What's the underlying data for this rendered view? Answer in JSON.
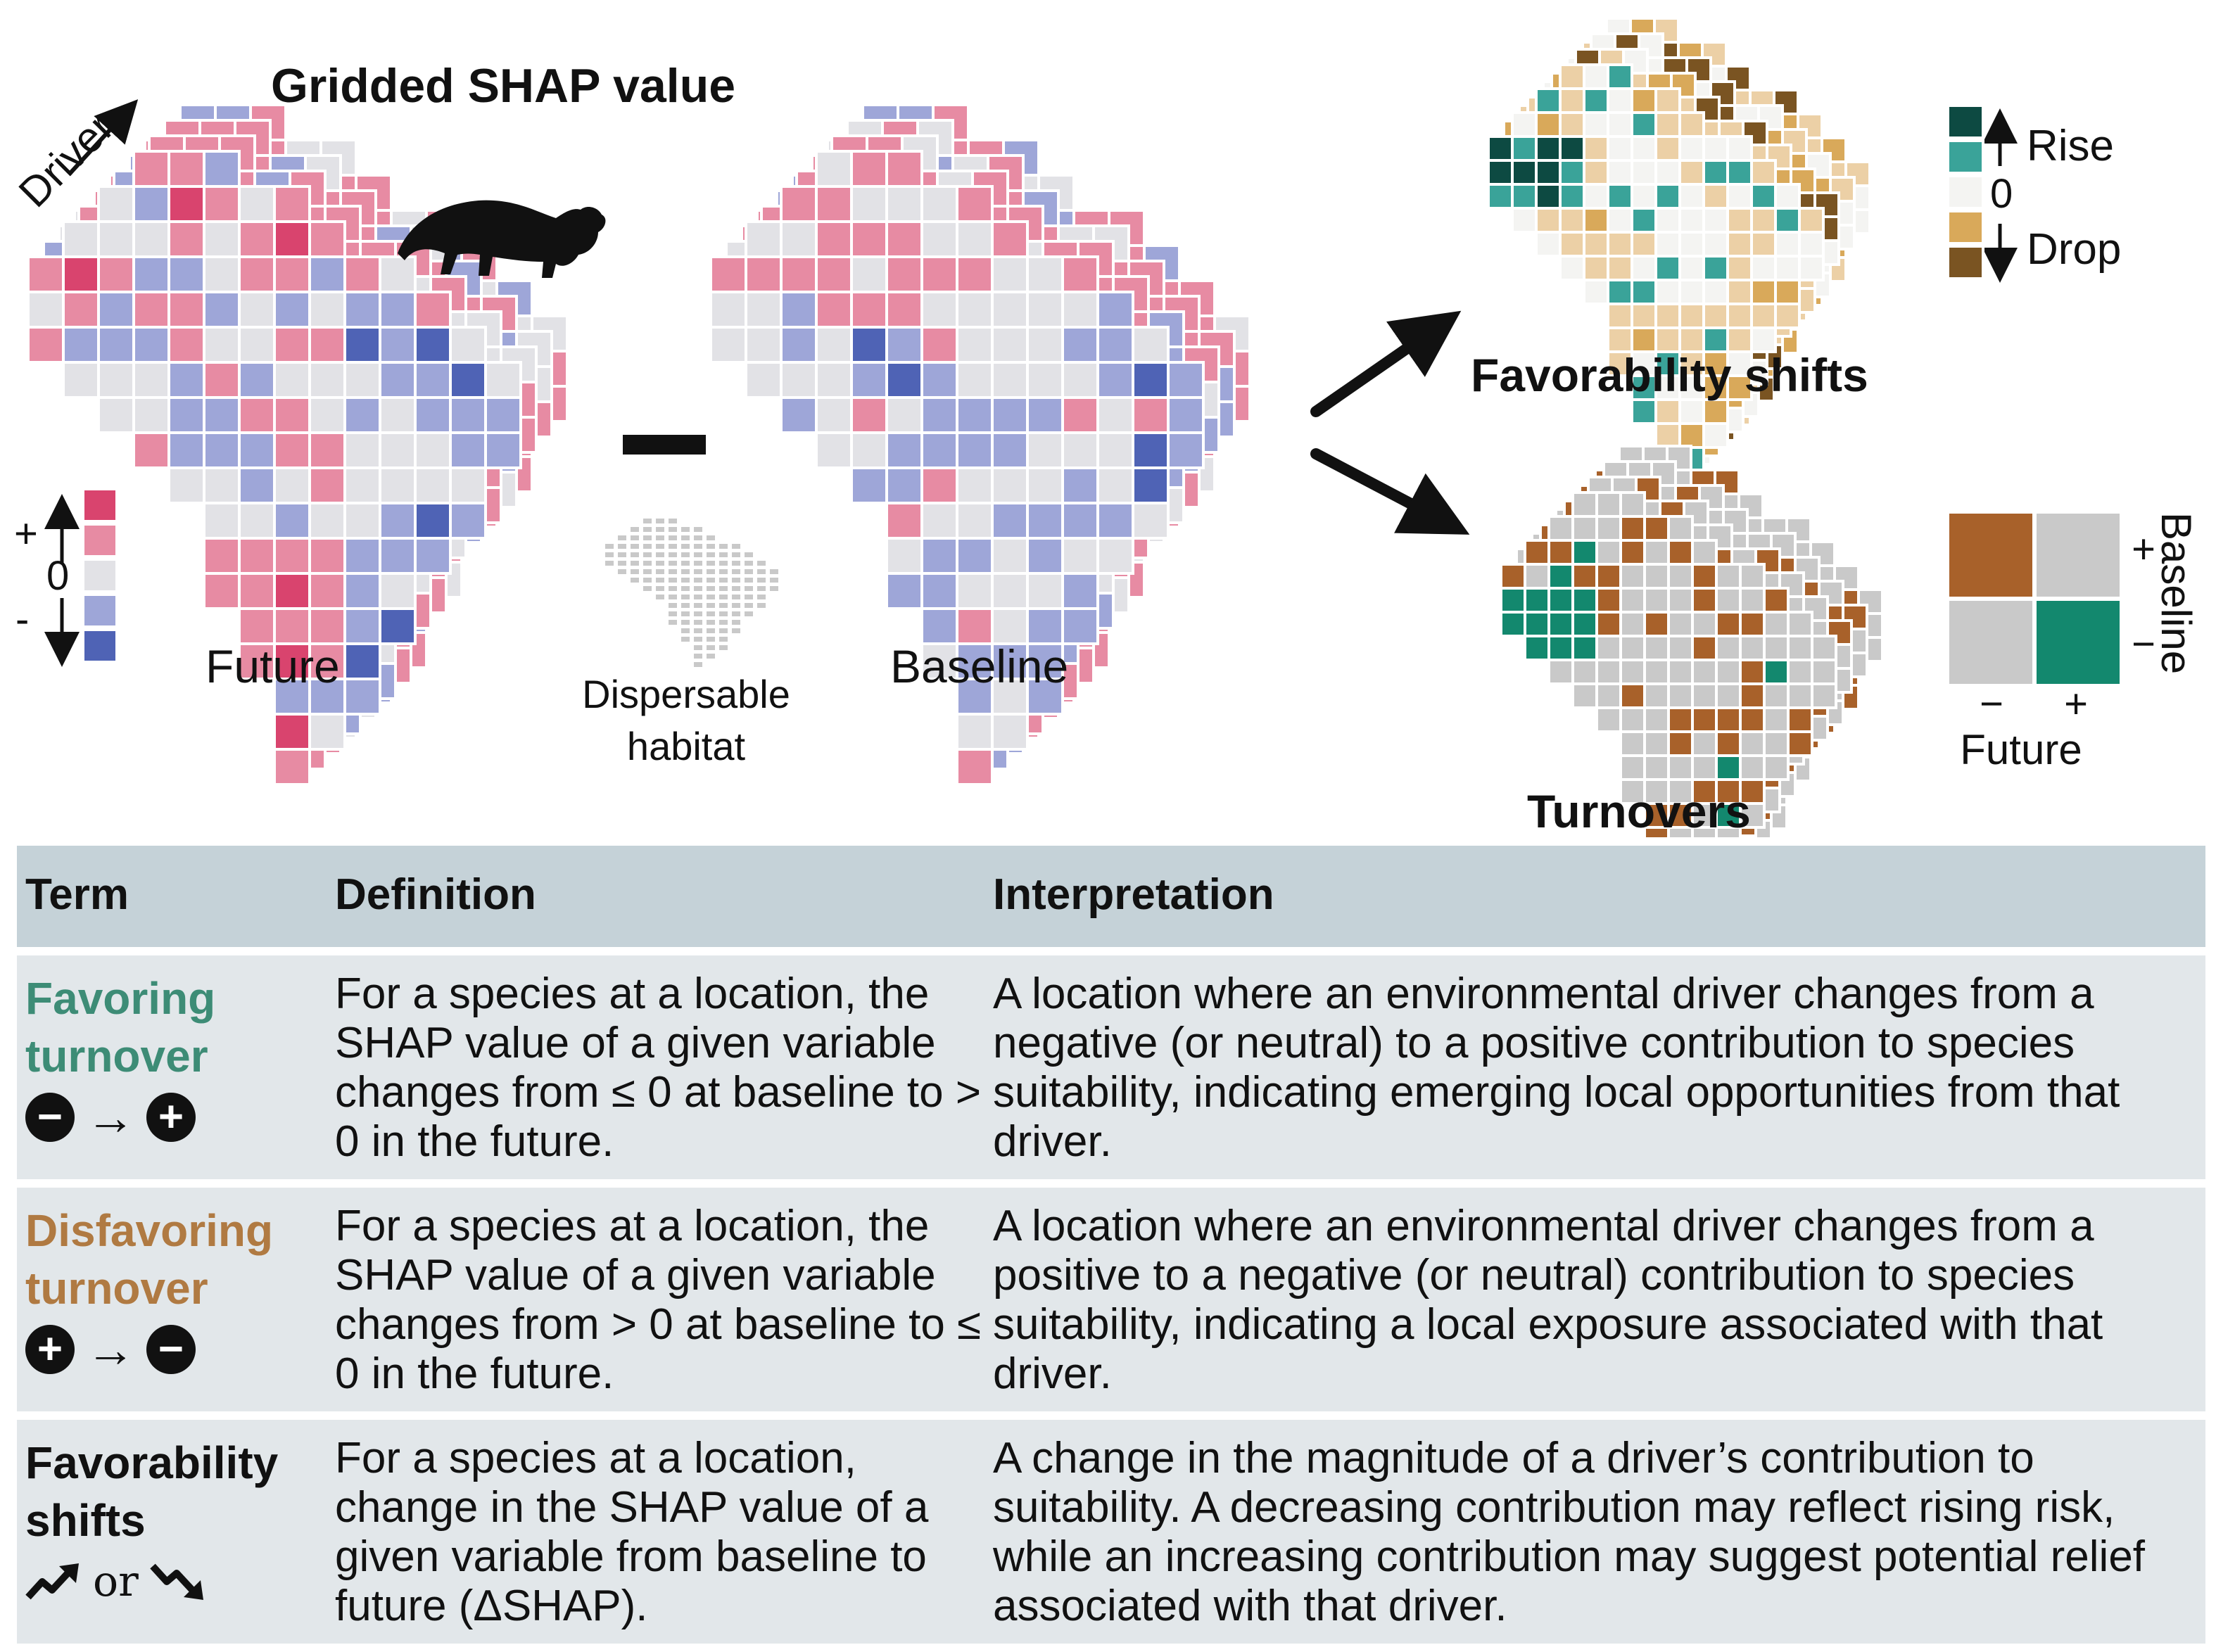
{
  "diagram": {
    "title": "Gridded SHAP value",
    "driver_label": "Driver",
    "future_label": "Future",
    "baseline_label": "Baseline",
    "habitat_label_line1": "Dispersable",
    "habitat_label_line2": "habitat",
    "favorability_label": "Favorability shifts",
    "turnovers_label": "Turnovers",
    "shap_legend": {
      "plus": "+",
      "zero": "0",
      "minus": "-",
      "colors": [
        "#d9446e",
        "#e78ba3",
        "#e2e2e6",
        "#9ea6d8",
        "#4f63b5"
      ]
    },
    "rise_drop_legend": {
      "rise": "Rise",
      "zero": "0",
      "drop": "Drop",
      "colors": [
        "#0d4a42",
        "#3aa399",
        "#f4f4f2",
        "#d9a95a",
        "#7a5422"
      ]
    },
    "turnover_legend": {
      "baseline": "Baseline",
      "future": "Future",
      "plus": "+",
      "minus": "−",
      "colors": {
        "brown": "#a8612a",
        "grey": "#c9c9c9",
        "green": "#13886e"
      }
    }
  },
  "table": {
    "headers": {
      "term": "Term",
      "definition": "Definition",
      "interpretation": "Interpretation"
    },
    "rows": [
      {
        "term_line1": "Favoring",
        "term_line2": "turnover",
        "definition": "For a species at a location, the SHAP value of a given variable changes from ≤ 0 at baseline to > 0 in the future.",
        "interpretation": "A location where an environmental driver changes from a negative (or neutral) to a positive contribution to species suitability, indicating emerging local opportunities from that driver."
      },
      {
        "term_line1": "Disfavoring",
        "term_line2": "turnover",
        "definition": "For a species at a location, the SHAP value of a given variable changes from > 0 at baseline to ≤ 0 in the future.",
        "interpretation": "A location where an environmental driver changes from a positive to a negative (or neutral) contribution to species suitability, indicating a local exposure associated with that driver."
      },
      {
        "term_line1": "Favorability",
        "term_line2": "shifts",
        "or_word": "or",
        "definition": "For a species at a location, change in the SHAP value of a given variable from baseline to future (ΔSHAP).",
        "interpretation": "A change in the magnitude of a driver’s contribution to suitability. A decreasing contribution may reflect rising risk, while an increasing contribution may suggest potential relief associated with that driver."
      }
    ]
  }
}
